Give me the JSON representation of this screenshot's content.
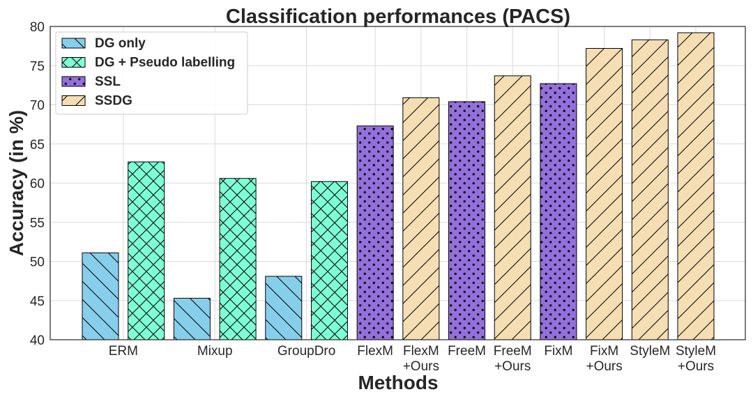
{
  "chart_data": {
    "type": "bar",
    "title": "Classification performances (PACS)",
    "xlabel": "Methods",
    "ylabel": "Accuracy (in %)",
    "ylim": [
      40,
      80
    ],
    "yticks": [
      40,
      45,
      50,
      55,
      60,
      65,
      70,
      75,
      80
    ],
    "grid": true,
    "legend_position": "top-left",
    "series": [
      {
        "name": "DG only",
        "color": "#87ceeb",
        "hatch": "backslash"
      },
      {
        "name": "DG + Pseudo labelling",
        "color": "#7fffd4",
        "hatch": "cross"
      },
      {
        "name": "SSL",
        "color": "#9370db",
        "hatch": "dots"
      },
      {
        "name": "SSDG",
        "color": "#f5deb3",
        "hatch": "slash"
      }
    ],
    "bars": [
      {
        "series": 0,
        "value": 51.1
      },
      {
        "series": 1,
        "value": 62.7
      },
      {
        "series": 0,
        "value": 45.3
      },
      {
        "series": 1,
        "value": 60.6
      },
      {
        "series": 0,
        "value": 48.1
      },
      {
        "series": 1,
        "value": 60.2
      },
      {
        "series": 2,
        "value": 67.3
      },
      {
        "series": 3,
        "value": 70.9
      },
      {
        "series": 2,
        "value": 70.4
      },
      {
        "series": 3,
        "value": 73.7
      },
      {
        "series": 2,
        "value": 72.7
      },
      {
        "series": 3,
        "value": 77.2
      },
      {
        "series": 3,
        "value": 78.3
      },
      {
        "series": 3,
        "value": 79.2
      }
    ],
    "xtick_labels": [
      {
        "lines": [
          "ERM"
        ],
        "span": [
          0,
          1
        ]
      },
      {
        "lines": [
          "Mixup"
        ],
        "span": [
          2,
          3
        ]
      },
      {
        "lines": [
          "GroupDro"
        ],
        "span": [
          4,
          5
        ]
      },
      {
        "lines": [
          "FlexM"
        ],
        "span": [
          6,
          6
        ]
      },
      {
        "lines": [
          "FlexM",
          "+Ours"
        ],
        "span": [
          7,
          7
        ]
      },
      {
        "lines": [
          "FreeM"
        ],
        "span": [
          8,
          8
        ]
      },
      {
        "lines": [
          "FreeM",
          "+Ours"
        ],
        "span": [
          9,
          9
        ]
      },
      {
        "lines": [
          "FixM"
        ],
        "span": [
          10,
          10
        ]
      },
      {
        "lines": [
          "FixM",
          "+Ours"
        ],
        "span": [
          11,
          11
        ]
      },
      {
        "lines": [
          "StyleM"
        ],
        "span": [
          12,
          12
        ]
      },
      {
        "lines": [
          "StyleM",
          "+Ours"
        ],
        "span": [
          13,
          13
        ]
      }
    ]
  }
}
